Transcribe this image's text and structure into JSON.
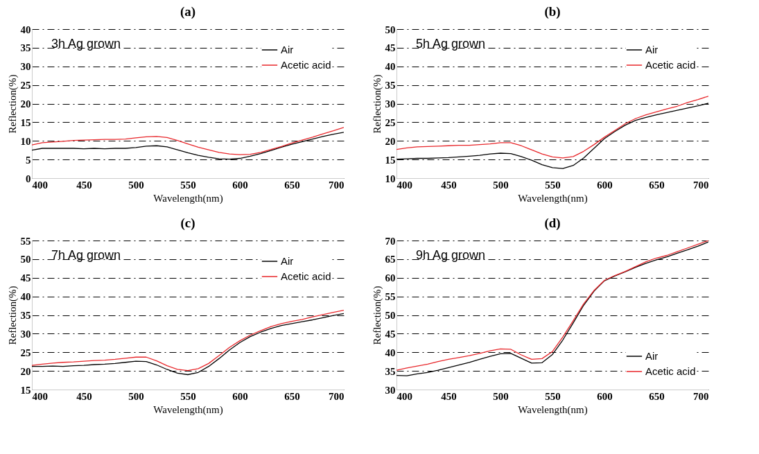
{
  "chart_data": [
    {
      "type": "line",
      "title": "(a)",
      "xlabel": "Wavelength(nm)",
      "ylabel": "Reflection(%)",
      "annotations": [
        "3h Ag grown"
      ],
      "legend": "top right",
      "grid": "y",
      "xlim": [
        400,
        700
      ],
      "xticks": [
        400,
        450,
        500,
        550,
        600,
        650,
        700
      ],
      "ylim": [
        0,
        40
      ],
      "yticks": [
        0,
        5,
        10,
        15,
        20,
        25,
        30,
        35,
        40
      ],
      "x": [
        400,
        410,
        420,
        430,
        440,
        450,
        460,
        470,
        480,
        490,
        500,
        510,
        520,
        530,
        540,
        550,
        560,
        570,
        580,
        590,
        600,
        610,
        620,
        630,
        640,
        650,
        660,
        670,
        680,
        690,
        700
      ],
      "series": [
        {
          "name": "Air",
          "color": "#000000",
          "values": [
            7.5,
            8,
            8,
            8,
            8,
            7.9,
            8,
            7.9,
            8,
            8,
            8.2,
            8.6,
            8.7,
            8.4,
            7.6,
            6.8,
            6.1,
            5.6,
            5.2,
            5.1,
            5.3,
            5.9,
            6.6,
            7.4,
            8.3,
            9.1,
            9.8,
            10.5,
            11.2,
            11.8,
            12.3
          ]
        },
        {
          "name": "Acetic acid",
          "color": "#e8262a",
          "values": [
            8.9,
            9.5,
            9.7,
            9.9,
            10.1,
            10.2,
            10.3,
            10.4,
            10.4,
            10.5,
            10.8,
            11.1,
            11.2,
            10.9,
            10.1,
            9.2,
            8.3,
            7.6,
            6.9,
            6.5,
            6.3,
            6.4,
            6.9,
            7.7,
            8.5,
            9.4,
            10.2,
            11,
            11.9,
            12.7,
            13.6
          ]
        }
      ]
    },
    {
      "type": "line",
      "title": "(b)",
      "xlabel": "Wavelength(nm)",
      "ylabel": "Reflection(%)",
      "annotations": [
        "5h Ag grown"
      ],
      "legend": "top right",
      "grid": "y",
      "xlim": [
        400,
        700
      ],
      "xticks": [
        400,
        450,
        500,
        550,
        600,
        650,
        700
      ],
      "ylim": [
        10,
        50
      ],
      "yticks": [
        10,
        15,
        20,
        25,
        30,
        35,
        40,
        45,
        50
      ],
      "x": [
        400,
        410,
        420,
        430,
        440,
        450,
        460,
        470,
        480,
        490,
        500,
        510,
        520,
        530,
        540,
        550,
        560,
        570,
        580,
        590,
        600,
        610,
        620,
        630,
        640,
        650,
        660,
        670,
        680,
        690,
        700
      ],
      "series": [
        {
          "name": "Air",
          "color": "#000000",
          "values": [
            15.1,
            15.2,
            15.3,
            15.3,
            15.4,
            15.5,
            15.7,
            15.9,
            16.1,
            16.5,
            16.7,
            16.6,
            15.8,
            14.8,
            13.6,
            12.8,
            12.6,
            13.4,
            15.4,
            18,
            20.6,
            22.5,
            24.2,
            25.5,
            26.3,
            27,
            27.6,
            28.2,
            28.8,
            29.4,
            30.1
          ]
        },
        {
          "name": "Acetic acid",
          "color": "#e8262a",
          "values": [
            17.7,
            18.1,
            18.4,
            18.5,
            18.6,
            18.7,
            18.8,
            18.8,
            19,
            19.2,
            19.5,
            19.5,
            18.7,
            17.6,
            16.5,
            15.7,
            15.4,
            15.8,
            17.2,
            19,
            21,
            22.8,
            24.6,
            26,
            27,
            27.8,
            28.6,
            29.3,
            30.3,
            31.1,
            32
          ]
        }
      ]
    },
    {
      "type": "line",
      "title": "(c)",
      "xlabel": "Wavelength(nm)",
      "ylabel": "Reflection(%)",
      "annotations": [
        "7h Ag grown"
      ],
      "legend": "top right",
      "grid": "y",
      "xlim": [
        400,
        700
      ],
      "xticks": [
        400,
        450,
        500,
        550,
        600,
        650,
        700
      ],
      "ylim": [
        15,
        55
      ],
      "yticks": [
        15,
        20,
        25,
        30,
        35,
        40,
        45,
        50,
        55
      ],
      "x": [
        400,
        410,
        420,
        430,
        440,
        450,
        460,
        470,
        480,
        490,
        500,
        510,
        520,
        530,
        540,
        550,
        560,
        570,
        580,
        590,
        600,
        610,
        620,
        630,
        640,
        650,
        660,
        670,
        680,
        690,
        700
      ],
      "series": [
        {
          "name": "Air",
          "color": "#000000",
          "values": [
            21.2,
            21.2,
            21.3,
            21.2,
            21.4,
            21.5,
            21.7,
            21.8,
            22,
            22.3,
            22.6,
            22.5,
            21.6,
            20.4,
            19.4,
            19,
            19.6,
            21.2,
            23.3,
            25.6,
            27.6,
            29.2,
            30.4,
            31.4,
            32.2,
            32.7,
            33.2,
            33.7,
            34.3,
            34.9,
            35.4
          ]
        },
        {
          "name": "Acetic acid",
          "color": "#e8262a",
          "values": [
            21.5,
            21.8,
            22.1,
            22.3,
            22.4,
            22.6,
            22.8,
            22.9,
            23.1,
            23.4,
            23.7,
            23.7,
            22.7,
            21.4,
            20.4,
            20.1,
            20.6,
            22,
            24.1,
            26.3,
            28.1,
            29.6,
            30.8,
            31.9,
            32.7,
            33.3,
            33.8,
            34.5,
            35.1,
            35.7,
            36.3
          ]
        }
      ]
    },
    {
      "type": "line",
      "title": "(d)",
      "xlabel": "Wavelength(nm)",
      "ylabel": "Reflection(%)",
      "annotations": [
        "9h Ag grown"
      ],
      "legend": "bottom right",
      "grid": "y",
      "xlim": [
        400,
        700
      ],
      "xticks": [
        400,
        450,
        500,
        550,
        600,
        650,
        700
      ],
      "ylim": [
        30,
        70
      ],
      "yticks": [
        30,
        35,
        40,
        45,
        50,
        55,
        60,
        65,
        70
      ],
      "x": [
        400,
        410,
        420,
        430,
        440,
        450,
        460,
        470,
        480,
        490,
        500,
        510,
        520,
        530,
        540,
        550,
        560,
        570,
        580,
        590,
        600,
        610,
        620,
        630,
        640,
        650,
        660,
        670,
        680,
        690,
        700
      ],
      "series": [
        {
          "name": "Air",
          "color": "#000000",
          "values": [
            33.8,
            33.7,
            34.2,
            34.6,
            35.2,
            35.9,
            36.6,
            37.3,
            38.1,
            38.9,
            39.6,
            39.7,
            38.4,
            37.1,
            37.2,
            39.4,
            43.3,
            47.9,
            52.6,
            56.4,
            59.2,
            60.5,
            61.6,
            62.8,
            63.9,
            64.8,
            65.6,
            66.6,
            67.5,
            68.5,
            69.6
          ]
        },
        {
          "name": "Acetic acid",
          "color": "#e8262a",
          "values": [
            35.2,
            35.8,
            36.3,
            36.8,
            37.5,
            38.1,
            38.6,
            39.1,
            39.7,
            40.4,
            40.9,
            40.8,
            39.3,
            38.1,
            38.3,
            40.2,
            44.1,
            48.5,
            53,
            56.6,
            59.3,
            60.6,
            61.7,
            63,
            64.3,
            65.3,
            66,
            67,
            68,
            69,
            70
          ]
        }
      ]
    }
  ]
}
